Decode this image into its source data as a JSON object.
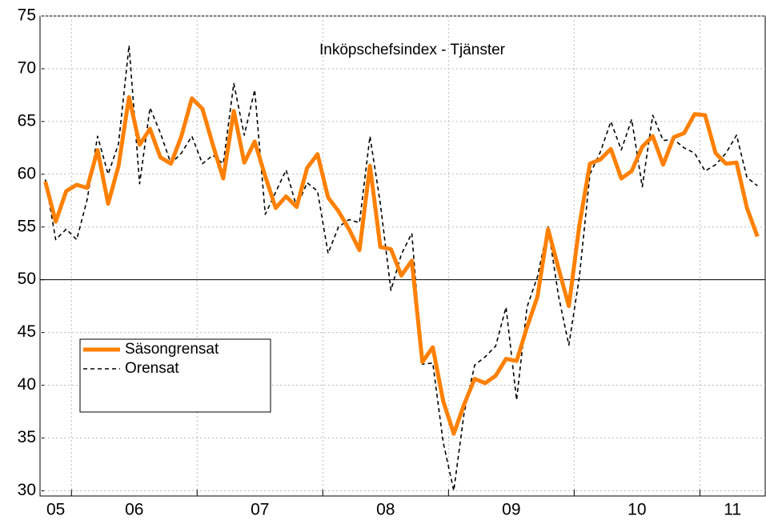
{
  "chart_data": {
    "type": "line",
    "title": "Inköpschefsindex - Tjänster",
    "x": [
      2005.792,
      2005.875,
      2005.958,
      2006.042,
      2006.125,
      2006.208,
      2006.292,
      2006.375,
      2006.458,
      2006.542,
      2006.625,
      2006.708,
      2006.792,
      2006.875,
      2006.958,
      2007.042,
      2007.125,
      2007.208,
      2007.292,
      2007.375,
      2007.458,
      2007.542,
      2007.625,
      2007.708,
      2007.792,
      2007.875,
      2007.958,
      2008.042,
      2008.125,
      2008.208,
      2008.292,
      2008.375,
      2008.458,
      2008.542,
      2008.625,
      2008.708,
      2008.792,
      2008.875,
      2008.958,
      2009.042,
      2009.125,
      2009.208,
      2009.292,
      2009.375,
      2009.458,
      2009.542,
      2009.625,
      2009.708,
      2009.792,
      2009.875,
      2009.958,
      2010.042,
      2010.125,
      2010.208,
      2010.292,
      2010.375,
      2010.458,
      2010.542,
      2010.625,
      2010.708,
      2010.792,
      2010.875,
      2010.958,
      2011.042,
      2011.125,
      2011.208,
      2011.292,
      2011.375,
      2011.458
    ],
    "series": [
      {
        "name": "Säsongrensat",
        "color": "#ff8000",
        "dash": false,
        "width": 5,
        "values": [
          59.3,
          55.5,
          58.4,
          59.0,
          58.7,
          62.3,
          57.2,
          60.8,
          67.3,
          62.8,
          64.3,
          61.6,
          61.0,
          63.6,
          67.2,
          66.2,
          62.8,
          59.6,
          66.0,
          61.1,
          63.1,
          59.8,
          56.8,
          57.9,
          56.9,
          60.6,
          61.9,
          57.8,
          56.5,
          54.8,
          52.8,
          60.8,
          53.1,
          52.9,
          50.4,
          51.8,
          42.2,
          43.6,
          38.5,
          35.4,
          38.2,
          40.6,
          40.2,
          40.9,
          42.5,
          42.3,
          45.5,
          48.4,
          54.8,
          51.1,
          47.5,
          55.2,
          61.0,
          61.4,
          62.4,
          59.6,
          60.3,
          62.6,
          63.6,
          60.9,
          63.5,
          63.9,
          65.7,
          65.6,
          62.0,
          61.0,
          61.1,
          56.8,
          54.1
        ]
      },
      {
        "name": "Orensat",
        "color": "#000000",
        "dash": true,
        "width": 1.6,
        "values": [
          59.5,
          53.8,
          54.8,
          53.8,
          57.6,
          63.6,
          60.0,
          62.9,
          72.2,
          59.1,
          66.3,
          63.9,
          61.0,
          62.0,
          63.6,
          61.0,
          61.8,
          61.0,
          68.6,
          63.7,
          68.0,
          56.2,
          58.3,
          60.4,
          56.9,
          59.2,
          58.4,
          52.5,
          55.0,
          55.7,
          55.4,
          63.6,
          57.2,
          49.0,
          52.4,
          54.4,
          42.0,
          42.1,
          34.6,
          30.0,
          37.4,
          41.9,
          42.7,
          43.7,
          47.4,
          38.6,
          47.4,
          50.3,
          55.0,
          48.5,
          43.8,
          50.3,
          60.0,
          62.1,
          65.0,
          62.3,
          65.2,
          58.8,
          65.6,
          63.2,
          63.3,
          62.5,
          62.0,
          60.3,
          60.9,
          62.0,
          63.7,
          59.7,
          58.9
        ]
      }
    ],
    "xlim": [
      2005.75,
      2011.52
    ],
    "xgrid": [
      2006,
      2007,
      2008,
      2009,
      2010,
      2011
    ],
    "year_labels": [
      {
        "value": 2005,
        "label": "05"
      },
      {
        "value": 2006,
        "label": "06"
      },
      {
        "value": 2007,
        "label": "07"
      },
      {
        "value": 2008,
        "label": "08"
      },
      {
        "value": 2009,
        "label": "09"
      },
      {
        "value": 2010,
        "label": "10"
      },
      {
        "value": 2011,
        "label": "11"
      }
    ],
    "ylim": [
      29.5,
      75
    ],
    "yticks": [
      30,
      35,
      40,
      45,
      50,
      55,
      60,
      65,
      70,
      75
    ],
    "hline": 50,
    "grid": true
  }
}
